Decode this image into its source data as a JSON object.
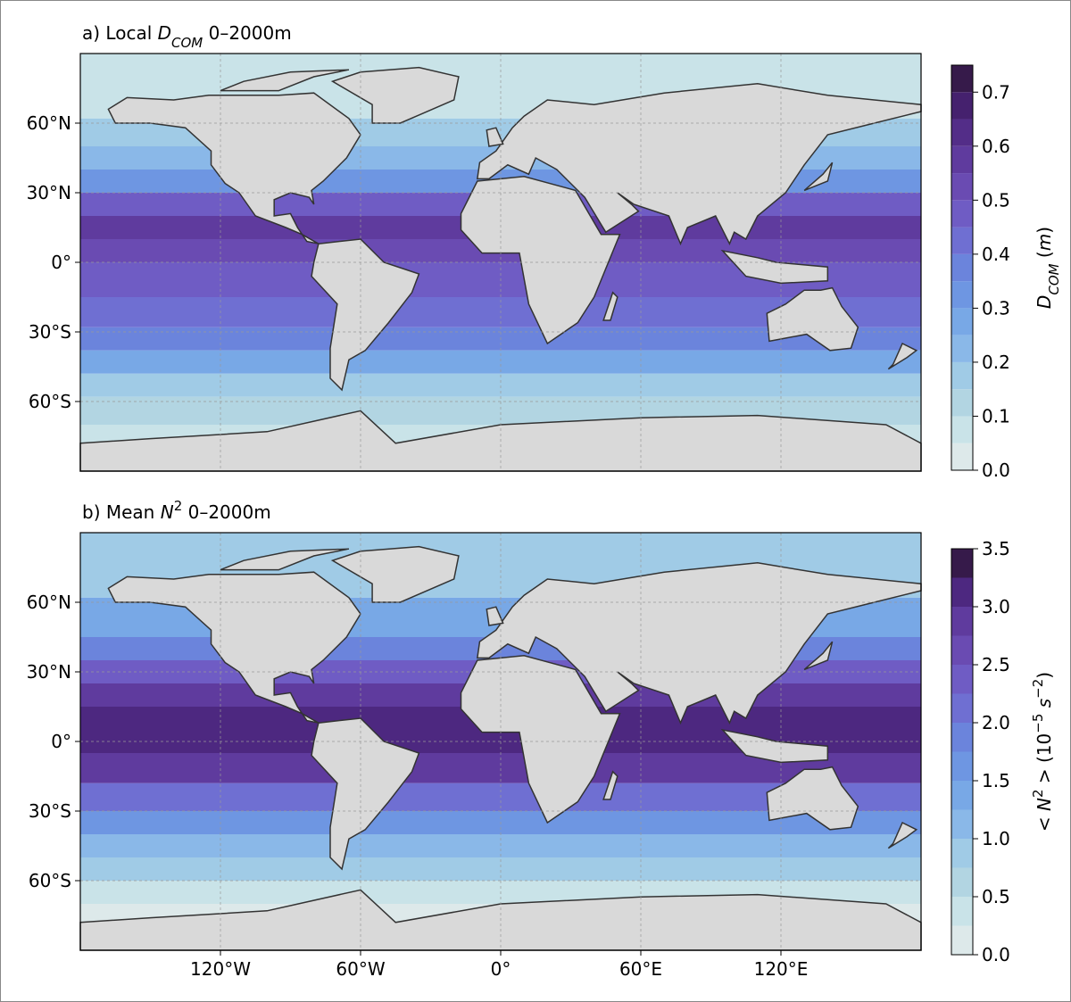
{
  "panels": [
    {
      "title": [
        {
          "text": "a) Local "
        },
        {
          "text": "D",
          "style": "italic"
        },
        {
          "text": "COM",
          "style": "sub"
        },
        {
          "text": " 0–2000m"
        }
      ],
      "colorbar": {
        "label": [
          {
            "text": "D",
            "style": "italic"
          },
          {
            "text": "COM",
            "style": "sub"
          },
          {
            "text": " ("
          },
          {
            "text": "m",
            "style": "italic"
          },
          {
            "text": ")"
          }
        ],
        "lim": [
          0,
          0.75
        ],
        "levels": [
          0,
          0.05,
          0.1,
          0.15,
          0.2,
          0.25,
          0.3,
          0.35,
          0.4,
          0.45,
          0.5,
          0.55,
          0.6,
          0.65,
          0.7,
          0.75
        ],
        "colors": [
          "#dde9ea",
          "#c9e3e8",
          "#b2d5e2",
          "#a0cbe6",
          "#8ab8e8",
          "#78a8e6",
          "#6e96e2",
          "#6b84dc",
          "#6f6fd2",
          "#6f5cc4",
          "#6a4bb2",
          "#5f3b9e",
          "#532d88",
          "#45216e",
          "#361a4a"
        ],
        "ticks": [
          {
            "value": 0,
            "label": "0.0"
          },
          {
            "value": 0.1,
            "label": "0.1"
          },
          {
            "value": 0.2,
            "label": "0.2"
          },
          {
            "value": 0.3,
            "label": "0.3"
          },
          {
            "value": 0.4,
            "label": "0.4"
          },
          {
            "value": 0.5,
            "label": "0.5"
          },
          {
            "value": 0.6,
            "label": "0.6"
          },
          {
            "value": 0.7,
            "label": "0.7"
          }
        ]
      }
    },
    {
      "title": [
        {
          "text": "b) Mean "
        },
        {
          "text": "N",
          "style": "italic"
        },
        {
          "text": "2",
          "style": "sup"
        },
        {
          "text": " 0–2000m"
        }
      ],
      "colorbar": {
        "label": [
          {
            "text": "< "
          },
          {
            "text": "N",
            "style": "italic"
          },
          {
            "text": "2",
            "style": "sup"
          },
          {
            "text": " >  (10"
          },
          {
            "text": "−5",
            "style": "sup"
          },
          {
            "text": " "
          },
          {
            "text": "s",
            "style": "italic"
          },
          {
            "text": "−2",
            "style": "sup"
          },
          {
            "text": ")"
          }
        ],
        "lim": [
          0,
          3.5
        ],
        "levels": [
          0,
          0.25,
          0.5,
          0.75,
          1,
          1.25,
          1.5,
          1.75,
          2,
          2.25,
          2.5,
          2.75,
          3,
          3.25,
          3.5
        ],
        "colors": [
          "#dde9ea",
          "#c9e3e8",
          "#b2d5e2",
          "#a0cbe6",
          "#8ab8e8",
          "#78a8e6",
          "#6e96e2",
          "#6b84dc",
          "#6f6fd2",
          "#6f5cc4",
          "#6a4bb2",
          "#5f3b9e",
          "#4d2880",
          "#361a4a"
        ],
        "ticks": [
          {
            "value": 0,
            "label": "0.0"
          },
          {
            "value": 0.5,
            "label": "0.5"
          },
          {
            "value": 1,
            "label": "1.0"
          },
          {
            "value": 1.5,
            "label": "1.5"
          },
          {
            "value": 2,
            "label": "2.0"
          },
          {
            "value": 2.5,
            "label": "2.5"
          },
          {
            "value": 3,
            "label": "3.0"
          },
          {
            "value": 3.5,
            "label": "3.5"
          }
        ]
      }
    }
  ],
  "map": {
    "xlim": [
      -180,
      180
    ],
    "ylim": [
      -90,
      90
    ],
    "grid": true,
    "land_color": "#d9d9d9",
    "xticks": [
      {
        "value": -120,
        "label": "120°W"
      },
      {
        "value": -60,
        "label": "60°W"
      },
      {
        "value": 0,
        "label": "0°"
      },
      {
        "value": 60,
        "label": "60°E"
      },
      {
        "value": 120,
        "label": "120°E"
      }
    ],
    "yticks": [
      {
        "value": 60,
        "label": "60°N"
      },
      {
        "value": 30,
        "label": "30°N"
      },
      {
        "value": 0,
        "label": "0°"
      },
      {
        "value": -30,
        "label": "30°S"
      },
      {
        "value": -60,
        "label": "60°S"
      }
    ]
  }
}
